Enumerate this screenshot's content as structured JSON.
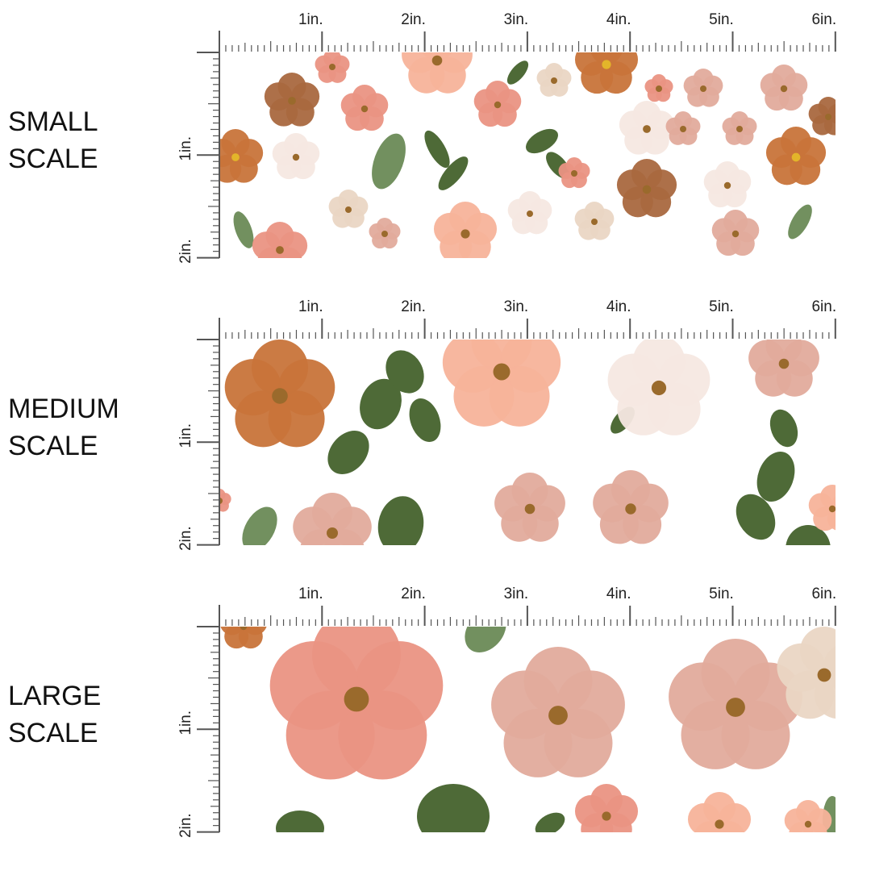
{
  "sections": [
    {
      "label": [
        "SMALL",
        "SCALE"
      ],
      "x_ruler": [
        "1in.",
        "2in.",
        "3in.",
        "4in.",
        "5in.",
        "6in."
      ],
      "y_ruler": [
        "1in.",
        "2in."
      ]
    },
    {
      "label": [
        "MEDIUM",
        "SCALE"
      ],
      "x_ruler": [
        "1in.",
        "2in.",
        "3in.",
        "4in.",
        "5in.",
        "6in."
      ],
      "y_ruler": [
        "1in.",
        "2in."
      ]
    },
    {
      "label": [
        "LARGE",
        "SCALE"
      ],
      "x_ruler": [
        "1in.",
        "2in.",
        "3in.",
        "4in.",
        "5in.",
        "6in."
      ],
      "y_ruler": [
        "1in.",
        "2in."
      ]
    }
  ]
}
